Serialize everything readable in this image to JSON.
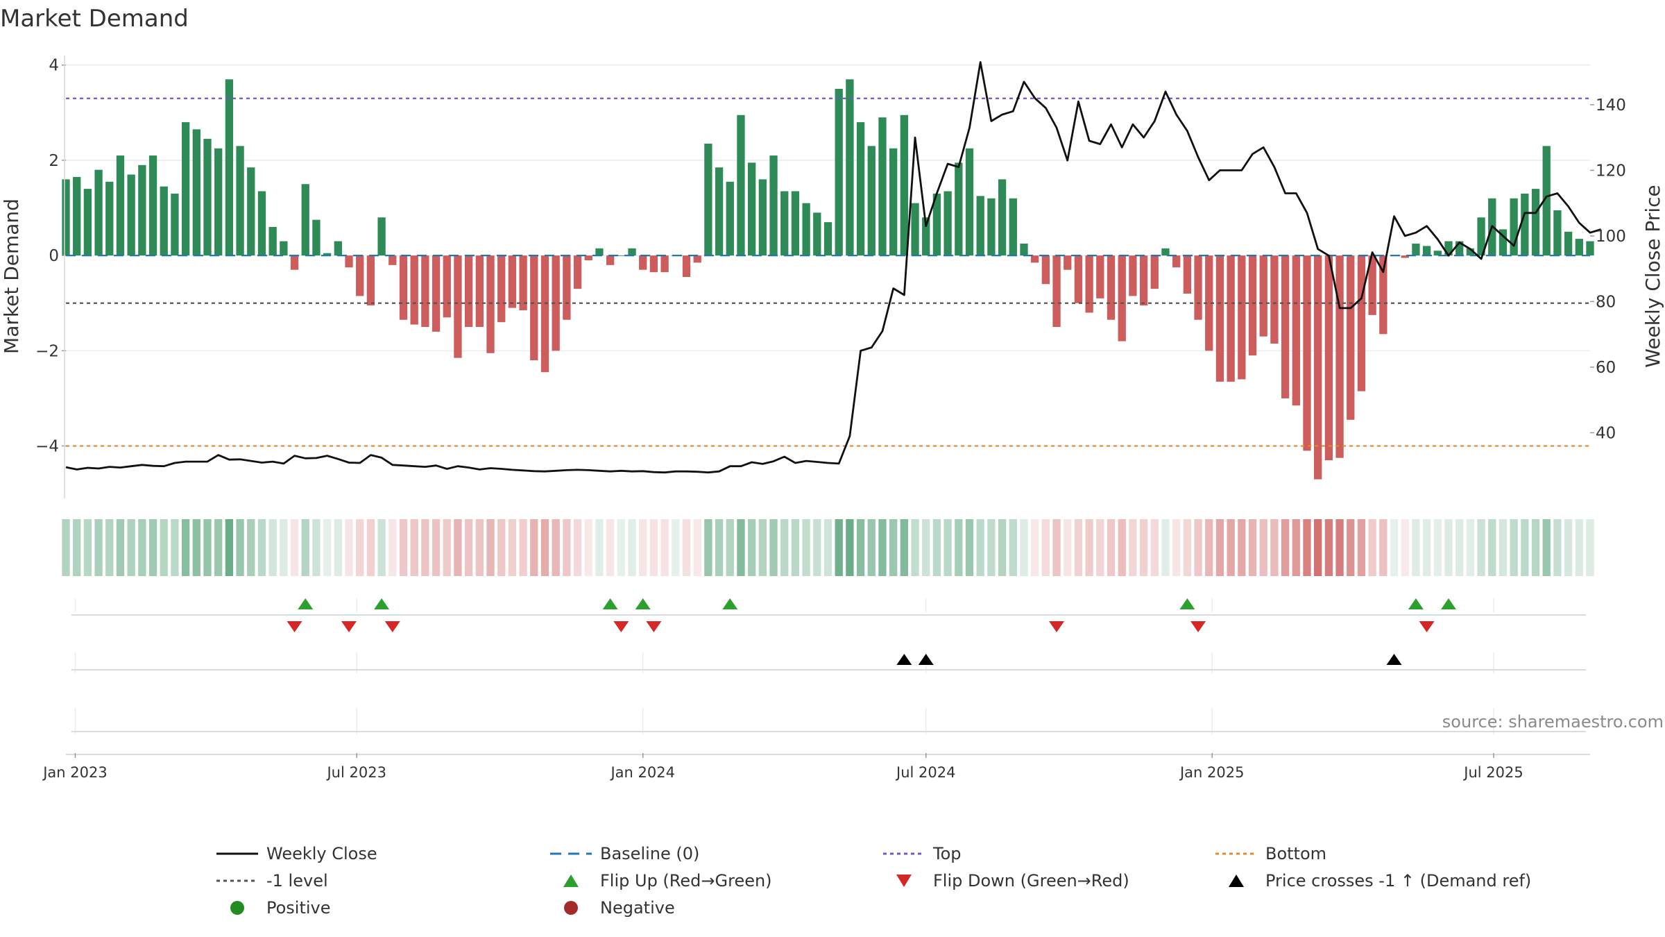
{
  "chart_data": {
    "type": "bar",
    "title": "Market Demand",
    "ylabel_left": "Market Demand",
    "ylabel_right": "Weekly Close Price",
    "ylim_left": [
      -5.1,
      4.2
    ],
    "yticks_left": [
      4,
      2,
      0,
      -2,
      -4
    ],
    "ytick_labels_left": [
      "4",
      "2",
      "0",
      "−2",
      "−4"
    ],
    "ylim_right": [
      20,
      155
    ],
    "yticks_right": [
      140,
      120,
      100,
      80,
      60,
      40
    ],
    "ytick_labels_right": [
      "140",
      "120",
      "100",
      "80",
      "60",
      "40"
    ],
    "grid": true,
    "x_start": "2022-12-26",
    "interval_days": 7,
    "x_ticks": [
      {
        "date": "2023-01-01",
        "label": "Jan 2023"
      },
      {
        "date": "2023-07-01",
        "label": "Jul 2023"
      },
      {
        "date": "2024-01-01",
        "label": "Jan 2024"
      },
      {
        "date": "2024-07-01",
        "label": "Jul 2024"
      },
      {
        "date": "2025-01-01",
        "label": "Jan 2025"
      },
      {
        "date": "2025-07-01",
        "label": "Jul 2025"
      }
    ],
    "demand": [
      1.6,
      1.65,
      1.4,
      1.8,
      1.55,
      2.1,
      1.7,
      1.9,
      2.1,
      1.45,
      1.3,
      2.8,
      2.65,
      2.45,
      2.25,
      3.7,
      2.3,
      1.85,
      1.35,
      0.6,
      0.3,
      -0.3,
      1.5,
      0.75,
      0.05,
      0.3,
      -0.25,
      -0.85,
      -1.05,
      0.8,
      -0.2,
      -1.35,
      -1.45,
      -1.5,
      -1.6,
      -1.3,
      -2.15,
      -1.5,
      -1.5,
      -2.05,
      -1.4,
      -1.1,
      -1.15,
      -2.2,
      -2.45,
      -2.0,
      -1.35,
      -0.7,
      -0.1,
      0.15,
      -0.2,
      0.0,
      0.15,
      -0.3,
      -0.35,
      -0.35,
      0.0,
      -0.45,
      -0.15,
      2.35,
      1.85,
      1.55,
      2.95,
      1.95,
      1.6,
      2.1,
      1.35,
      1.35,
      1.1,
      0.9,
      0.7,
      3.5,
      3.7,
      2.8,
      2.3,
      2.9,
      2.25,
      2.95,
      1.1,
      0.8,
      1.3,
      1.35,
      1.95,
      2.25,
      1.25,
      1.2,
      1.6,
      1.2,
      0.25,
      -0.15,
      -0.6,
      -1.5,
      -0.3,
      -1.0,
      -1.2,
      -0.9,
      -1.35,
      -1.8,
      -0.85,
      -1.05,
      -0.7,
      0.15,
      -0.25,
      -0.8,
      -1.35,
      -2.0,
      -2.65,
      -2.65,
      -2.6,
      -2.1,
      -1.7,
      -1.85,
      -3.0,
      -3.15,
      -4.1,
      -4.7,
      -4.3,
      -4.25,
      -3.45,
      -2.85,
      -1.25,
      -1.65,
      0.0,
      -0.05,
      0.25,
      0.2,
      0.1,
      0.3,
      0.3,
      0.15,
      0.8,
      1.2,
      0.55,
      1.2,
      1.3,
      1.4,
      2.3,
      0.95,
      0.5,
      0.35,
      0.3
    ],
    "weekly_close": [
      29.5,
      28.8,
      29.3,
      29.1,
      29.6,
      29.4,
      29.8,
      30.2,
      29.9,
      29.8,
      30.8,
      31.2,
      31.2,
      31.2,
      33.2,
      31.8,
      31.9,
      31.4,
      30.9,
      31.2,
      30.6,
      33.0,
      32.2,
      32.3,
      33.0,
      32.0,
      30.9,
      30.8,
      33.2,
      32.4,
      30.2,
      30.0,
      29.8,
      29.6,
      30.0,
      29.0,
      29.8,
      29.4,
      28.8,
      29.2,
      29.0,
      28.7,
      28.5,
      28.3,
      28.2,
      28.4,
      28.6,
      28.7,
      28.6,
      28.4,
      28.2,
      28.4,
      28.2,
      28.3,
      28.0,
      27.9,
      28.2,
      28.2,
      28.1,
      27.9,
      28.2,
      29.8,
      29.8,
      31.0,
      30.5,
      31.3,
      32.7,
      30.8,
      31.4,
      31.1,
      30.8,
      30.6,
      39.0,
      65.0,
      66.0,
      71.0,
      84.0,
      82.0,
      130.0,
      103.0,
      113.0,
      122.0,
      121.0,
      133.0,
      153.0,
      135.0,
      137.0,
      138.0,
      147.0,
      142.0,
      139.0,
      133.0,
      123.0,
      141.0,
      129.0,
      128.0,
      134.0,
      127.0,
      134.0,
      130.0,
      135.0,
      144.0,
      137.0,
      132.0,
      124.0,
      117.0,
      120.0,
      120.0,
      120.0,
      125.0,
      127.0,
      121.0,
      113.0,
      113.0,
      107.0,
      96.0,
      94.0,
      78.0,
      78.0,
      81.0,
      95.0,
      89.0,
      106.0,
      100.0,
      101.0,
      103.0,
      99.0,
      94.0,
      98.0,
      96.0,
      93.0,
      103.0,
      100.0,
      97.0,
      107.0,
      107.0,
      112.0,
      113.0,
      109.0,
      104.0,
      101.0,
      102.0
    ],
    "levels": {
      "top": 3.3,
      "bottom": -4.0,
      "minus_one": -1.0,
      "baseline": 0
    },
    "flip_up_weeks": [
      22,
      29,
      50,
      53,
      61,
      103,
      124,
      127
    ],
    "flip_down_weeks": [
      21,
      26,
      30,
      51,
      54,
      91,
      104,
      125
    ],
    "price_cross_weeks": [
      77,
      79,
      122
    ],
    "colors": {
      "positive_bar": "#2e8b57",
      "negative_bar": "#cd5c5c",
      "close_line": "#111111",
      "baseline": "#1f77b4",
      "top": "#6a5acd",
      "bottom": "#e08a2a",
      "minus_one": "#555555",
      "flip_up": "#2ca02c",
      "flip_down": "#d62728",
      "cross": "#000000",
      "positive_dot": "#228b22",
      "negative_dot": "#a52a2a"
    },
    "legend": [
      {
        "key": "close",
        "label": "Weekly Close"
      },
      {
        "key": "baseline",
        "label": "Baseline (0)"
      },
      {
        "key": "top",
        "label": "Top"
      },
      {
        "key": "bottom",
        "label": "Bottom"
      },
      {
        "key": "minus_one",
        "label": "-1 level"
      },
      {
        "key": "flip_up",
        "label": "Flip Up (Red→Green)"
      },
      {
        "key": "flip_down",
        "label": "Flip Down (Green→Red)"
      },
      {
        "key": "cross",
        "label": "Price crosses -1 ↑ (Demand ref)"
      },
      {
        "key": "positive",
        "label": "Positive"
      },
      {
        "key": "negative",
        "label": "Negative"
      }
    ],
    "legend_position": "bottom",
    "source": "source: sharemaestro.com"
  }
}
